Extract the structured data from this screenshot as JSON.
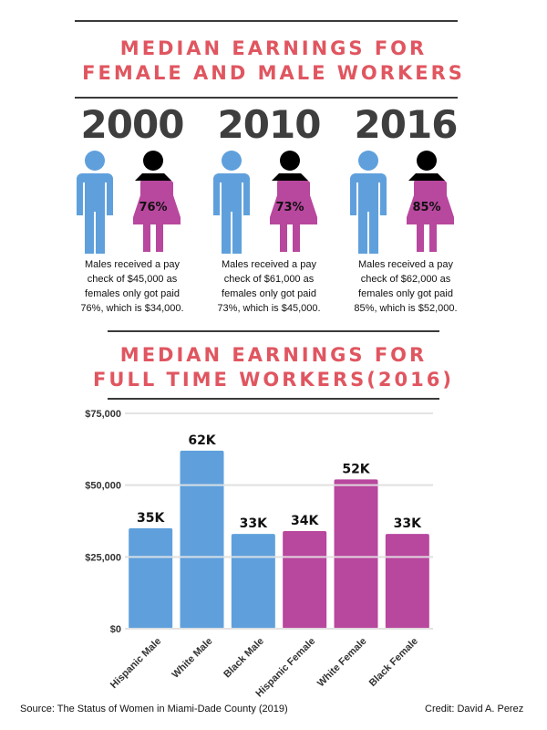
{
  "title1": {
    "line1": "MEDIAN EARNINGS FOR",
    "line2": "FEMALE AND MALE WORKERS"
  },
  "years": [
    {
      "year": "2000",
      "pct": "76%",
      "caption": [
        "Males received a pay",
        "check of $45,000 as",
        "females only got paid",
        "76%, which is $34,000."
      ]
    },
    {
      "year": "2010",
      "pct": "73%",
      "caption": [
        "Males received a pay",
        "check of $61,000 as",
        "females only got paid",
        "73%, which is $45,000."
      ]
    },
    {
      "year": "2016",
      "pct": "85%",
      "caption": [
        "Males received a pay",
        "check of $62,000 as",
        "females only got paid",
        "85%, which is $52,000."
      ]
    }
  ],
  "title2": {
    "line1": "MEDIAN EARNINGS FOR",
    "line2": "FULL TIME WORKERS(2016)"
  },
  "colors": {
    "title": "#e05660",
    "male": "#5fa0dc",
    "female": "#b8479e",
    "dark": "#3e3e3e"
  },
  "chart_data": {
    "type": "bar",
    "categories": [
      "Hispanic Male",
      "White Male",
      "Black Male",
      "Hispanic Female",
      "White Female",
      "Black Female"
    ],
    "values": [
      35,
      62,
      33,
      34,
      52,
      33
    ],
    "data_labels": [
      "35K",
      "62K",
      "33K",
      "34K",
      "52K",
      "33K"
    ],
    "bar_colors": [
      "#5fa0dc",
      "#5fa0dc",
      "#5fa0dc",
      "#b8479e",
      "#b8479e",
      "#b8479e"
    ],
    "yticks": [
      "$0",
      "$25,000",
      "$50,000",
      "$75,000"
    ],
    "ylim": [
      0,
      75
    ],
    "grid": true
  },
  "footer": {
    "source": "Source: The Status of Women in Miami-Dade County (2019)",
    "credit": "Credit: David A. Perez"
  }
}
